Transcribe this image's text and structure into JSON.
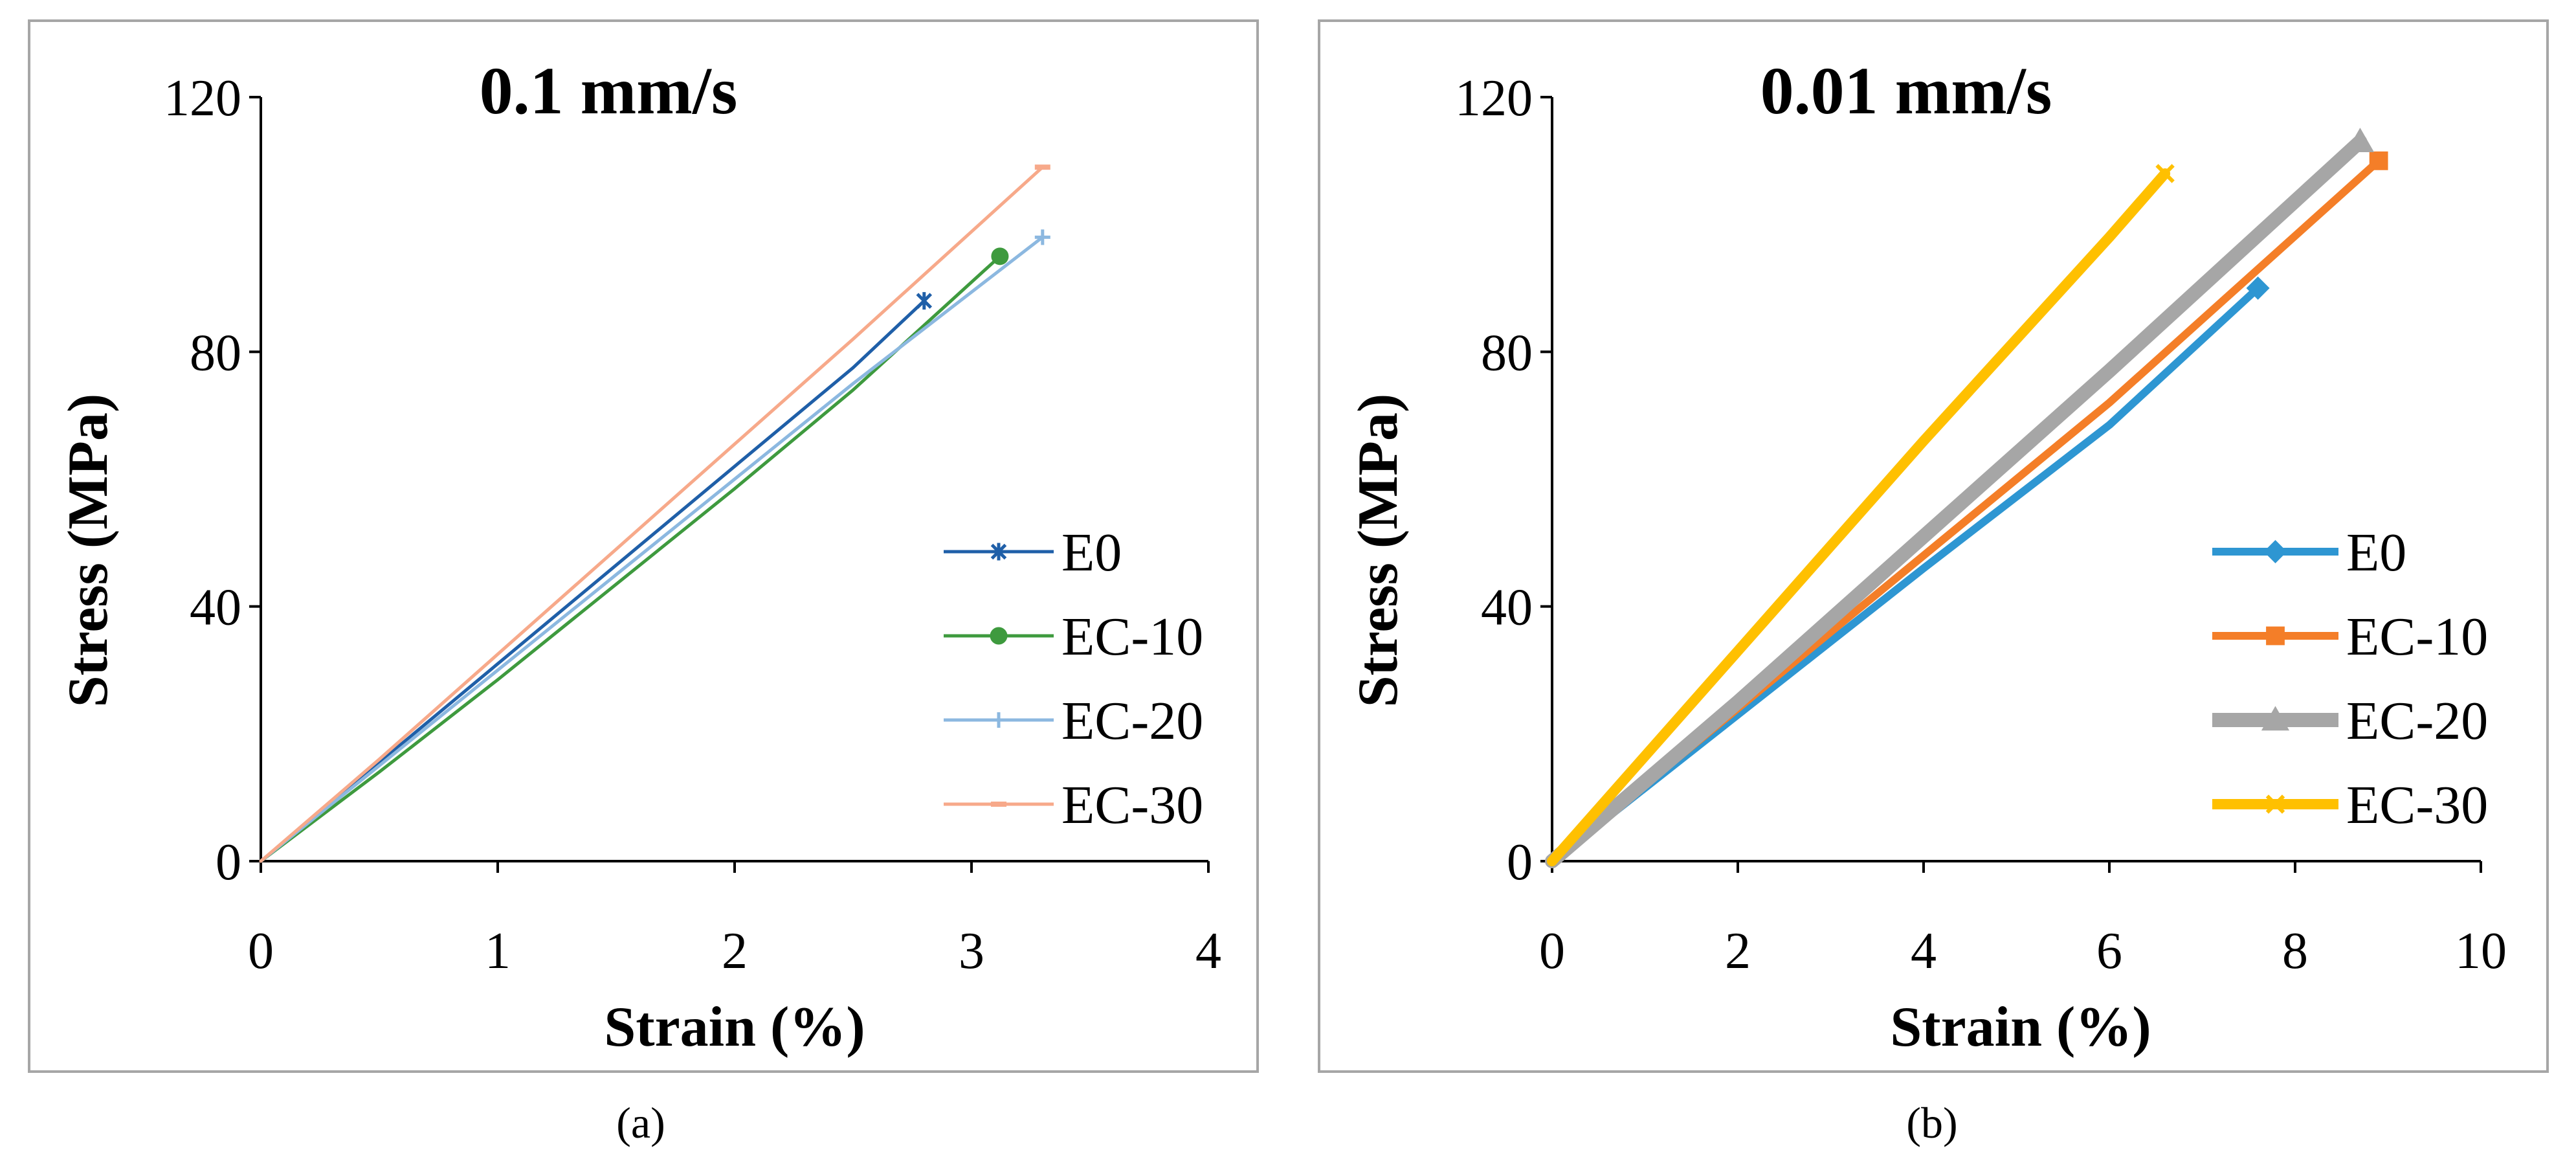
{
  "chart_data": [
    {
      "type": "line",
      "panel_label": "(a)",
      "title": "0.1 mm/s",
      "xlabel": "Strain (%)",
      "ylabel": "Stress (MPa)",
      "xlim": [
        0,
        4
      ],
      "ylim": [
        0,
        120
      ],
      "xticks": [
        "0",
        "1",
        "2",
        "3",
        "4"
      ],
      "yticks": [
        "0",
        "40",
        "80",
        "120"
      ],
      "grid": false,
      "legend_position": "right",
      "series": [
        {
          "name": "E0",
          "color": "#1f5fa8",
          "marker": "star",
          "width": 5,
          "x": [
            0,
            0.5,
            1.0,
            1.5,
            2.0,
            2.5,
            2.8
          ],
          "y": [
            0,
            15.5,
            31,
            46.5,
            62,
            77.5,
            88
          ]
        },
        {
          "name": "EC-10",
          "color": "#3e9a3e",
          "marker": "circle",
          "width": 5,
          "x": [
            0,
            0.5,
            1.0,
            1.5,
            2.0,
            2.5,
            3.12
          ],
          "y": [
            0,
            14,
            28.5,
            43.5,
            58.5,
            74,
            95
          ]
        },
        {
          "name": "EC-20",
          "color": "#8cb8e0",
          "marker": "plus",
          "width": 5,
          "x": [
            0,
            0.5,
            1.0,
            1.5,
            2.0,
            2.5,
            3.3
          ],
          "y": [
            0,
            15,
            30,
            45,
            60,
            75,
            98
          ]
        },
        {
          "name": "EC-30",
          "color": "#f7a98a",
          "marker": "dash",
          "width": 5,
          "x": [
            0,
            0.5,
            1.0,
            1.5,
            2.0,
            2.5,
            3.3
          ],
          "y": [
            0,
            16,
            32.5,
            49,
            65.5,
            82,
            109
          ]
        }
      ]
    },
    {
      "type": "line",
      "panel_label": "(b)",
      "title": "0.01 mm/s",
      "xlabel": "Strain (%)",
      "ylabel": "Stress (MPa)",
      "xlim": [
        0,
        10
      ],
      "ylim": [
        0,
        120
      ],
      "xticks": [
        "0",
        "2",
        "4",
        "6",
        "8",
        "10"
      ],
      "yticks": [
        "0",
        "40",
        "80",
        "120"
      ],
      "grid": false,
      "legend_position": "right",
      "series": [
        {
          "name": "E0",
          "color": "#2e96d2",
          "marker": "diamond",
          "width": 12,
          "x": [
            0,
            2,
            4,
            6,
            7.6
          ],
          "y": [
            0,
            23,
            46,
            68.5,
            90
          ]
        },
        {
          "name": "EC-10",
          "color": "#f47e28",
          "marker": "square",
          "width": 12,
          "x": [
            0,
            2,
            4,
            6,
            8.9
          ],
          "y": [
            0,
            24,
            48,
            72,
            110
          ]
        },
        {
          "name": "EC-20",
          "color": "#a6a6a6",
          "marker": "triangle",
          "width": 22,
          "x": [
            0,
            2,
            4,
            6,
            8.7
          ],
          "y": [
            0,
            25,
            51,
            77,
            113
          ]
        },
        {
          "name": "EC-30",
          "color": "#ffc000",
          "marker": "x",
          "width": 16,
          "x": [
            0,
            2,
            4,
            6,
            6.6
          ],
          "y": [
            0,
            33,
            66,
            98,
            108
          ]
        }
      ]
    }
  ]
}
